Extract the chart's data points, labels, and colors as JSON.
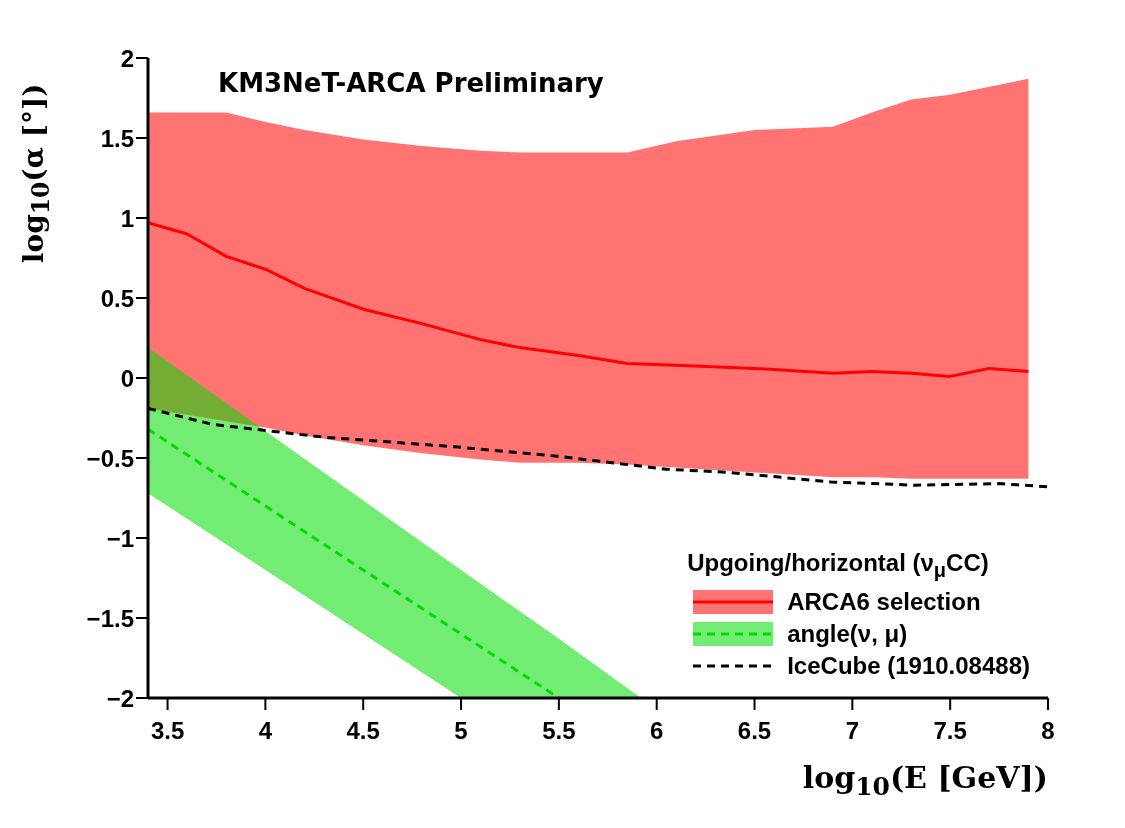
{
  "chart_data": {
    "type": "line",
    "xlabel": "log$_{10}$(E [GeV])",
    "ylabel": "log$_{10}$(α [°])",
    "legend_title": "Upgoing/horizontal (ν$_{μ}$CC)",
    "annotations": [
      "KM3NeT-ARCA Preliminary"
    ],
    "xlim": [
      3.4,
      8
    ],
    "xticks": [
      3.5,
      4,
      4.5,
      5,
      5.5,
      6,
      6.5,
      7,
      7.5,
      8
    ],
    "ylim": [
      -2,
      2
    ],
    "yticks": [
      -2,
      -1.5,
      -1,
      -0.5,
      0,
      0.5,
      1,
      1.5,
      2
    ],
    "legend": "bottom right",
    "marker": "none",
    "series": [
      {
        "name": "ARCA6 selection",
        "color": "#ff0000",
        "line_style": "solid",
        "x": [
          3.4,
          3.6,
          3.8,
          4.0,
          4.2,
          4.5,
          4.8,
          5.1,
          5.3,
          5.6,
          5.85,
          6.1,
          6.5,
          6.9,
          7.1,
          7.3,
          7.5,
          7.7,
          7.9
        ],
        "values": [
          0.97,
          0.9,
          0.76,
          0.68,
          0.56,
          0.43,
          0.34,
          0.24,
          0.19,
          0.14,
          0.09,
          0.08,
          0.06,
          0.03,
          0.04,
          0.03,
          0.01,
          0.06,
          0.04
        ],
        "lower": [
          -0.19,
          -0.23,
          -0.27,
          -0.31,
          -0.36,
          -0.42,
          -0.47,
          -0.51,
          -0.53,
          -0.53,
          -0.54,
          -0.56,
          -0.59,
          -0.62,
          -0.62,
          -0.63,
          -0.63,
          -0.63,
          -0.63
        ],
        "upper": [
          1.66,
          1.66,
          1.66,
          1.6,
          1.55,
          1.49,
          1.45,
          1.42,
          1.41,
          1.41,
          1.41,
          1.48,
          1.55,
          1.57,
          1.66,
          1.74,
          1.77,
          1.82,
          1.87
        ]
      },
      {
        "name": "angle(ν, μ)",
        "color": "#00dd00",
        "line_style": "dashed",
        "x": [
          3.4,
          5.0,
          5.5,
          5.92
        ],
        "values": [
          -0.32,
          -1.6,
          -2,
          null
        ],
        "lower": [
          -0.72,
          -2,
          -2,
          -2
        ],
        "upper": [
          0.19,
          -1.2,
          -1.63,
          -2
        ]
      },
      {
        "name": "IceCube (1910.08488)",
        "color": "#000000",
        "line_style": "dashed",
        "x": [
          3.4,
          3.73,
          4.3,
          4.97,
          5.5,
          6.05,
          6.37,
          6.89,
          7.32,
          7.75,
          8.0
        ],
        "values": [
          -0.19,
          -0.29,
          -0.37,
          -0.43,
          -0.49,
          -0.57,
          -0.59,
          -0.65,
          -0.67,
          -0.66,
          -0.68
        ]
      }
    ]
  }
}
